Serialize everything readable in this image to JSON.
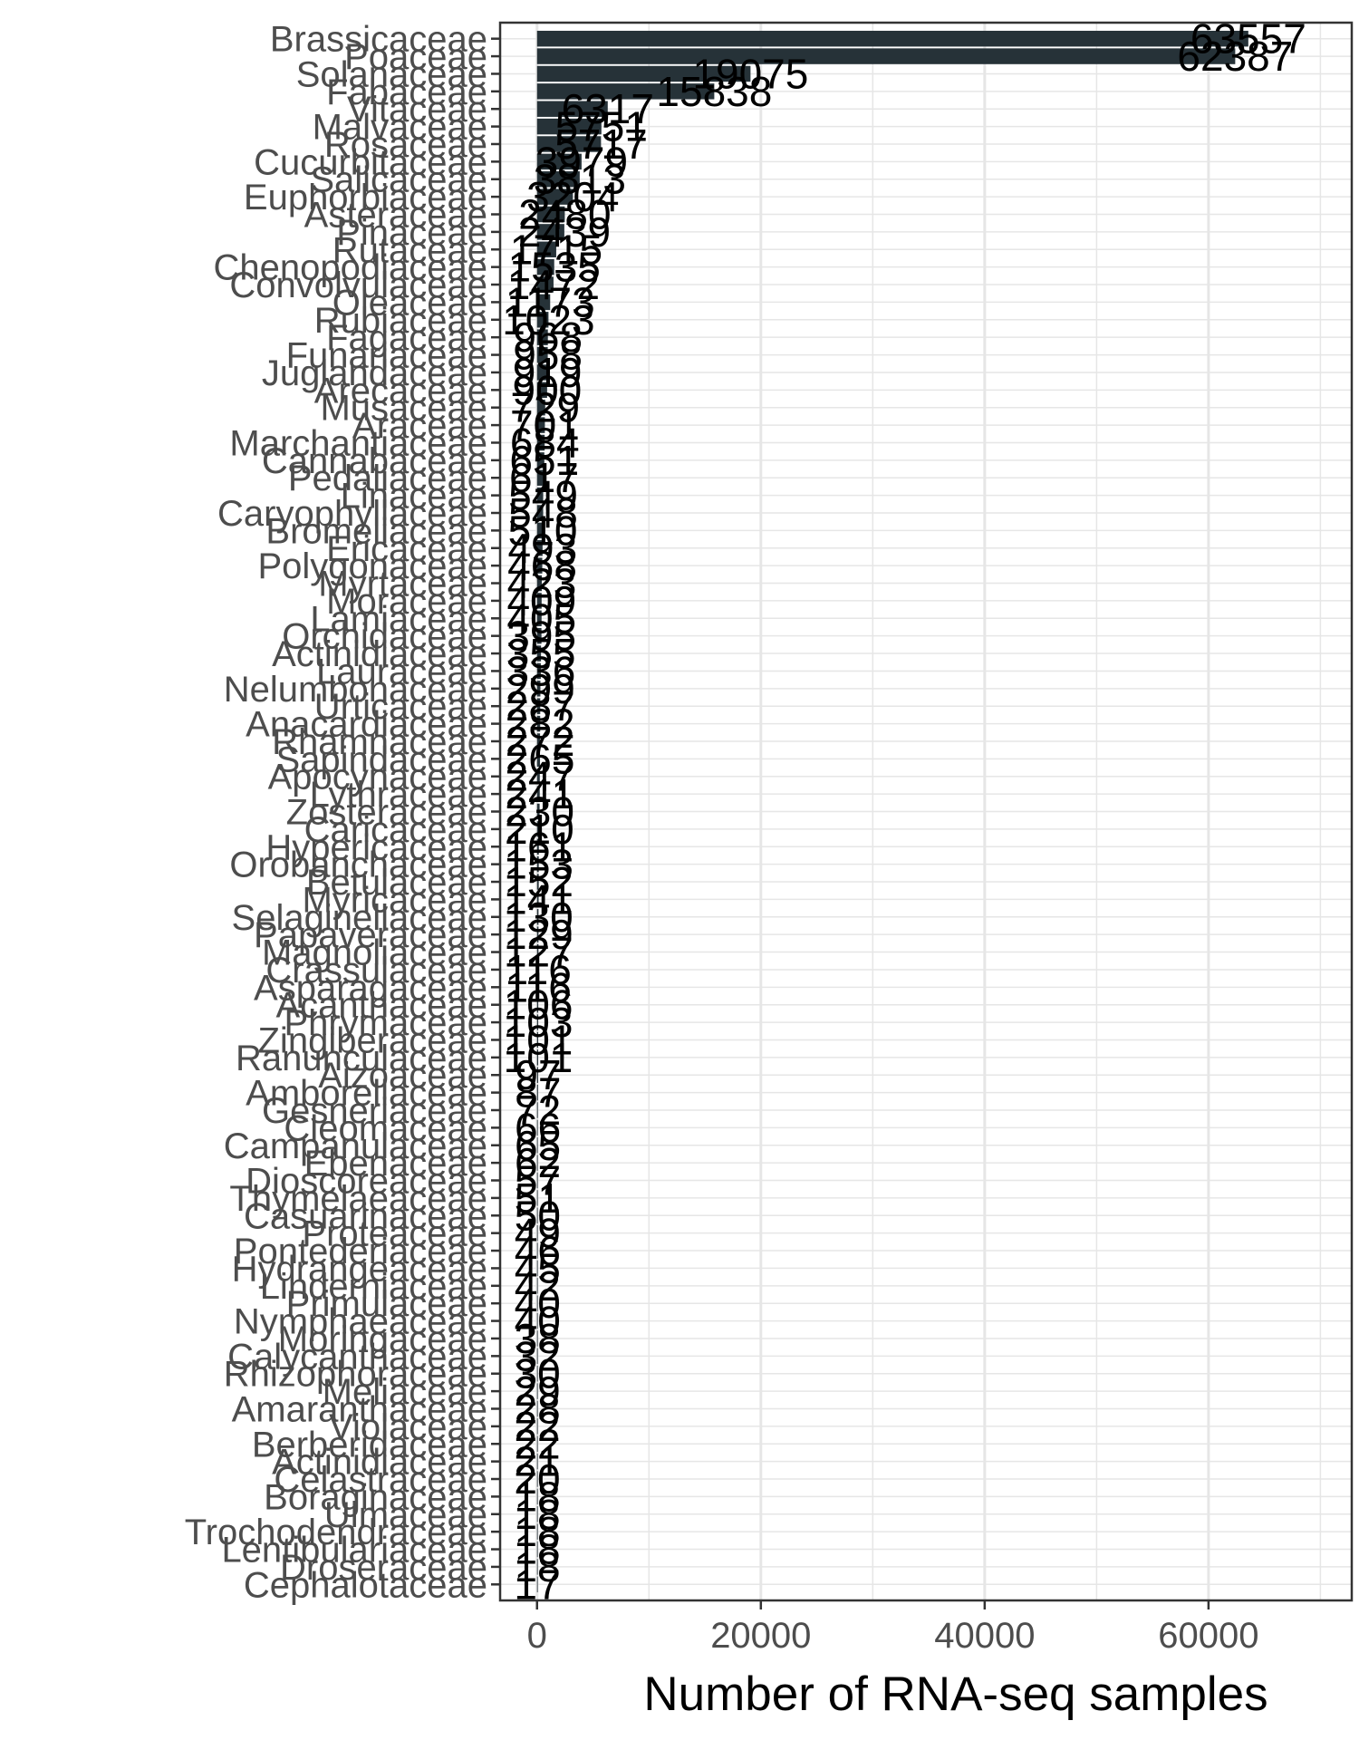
{
  "chart_data": {
    "type": "bar",
    "orientation": "horizontal",
    "title": "",
    "xlabel": "Number of RNA-seq samples",
    "ylabel": "",
    "xlim": [
      -3300,
      72800
    ],
    "xticks": [
      0,
      20000,
      40000,
      60000
    ],
    "grid": true,
    "bar_color": "#263238",
    "categories": [
      "Brassicaceae",
      "Poaceae",
      "Solanaceae",
      "Fabaceae",
      "Vitaceae",
      "Malvaceae",
      "Rosaceae",
      "Cucurbitaceae",
      "Salicaceae",
      "Euphorbiaceae",
      "Asteraceae",
      "Pinaceae",
      "Rutaceae",
      "Chenopodiaceae",
      "Convolvulaceae",
      "Oleaceae",
      "Rubiaceae",
      "Fagaceae",
      "Funariaceae",
      "Juglandaceae",
      "Arecaceae",
      "Musaceae",
      "Araceae",
      "Marchantiaceae",
      "Cannabaceae",
      "Pedaliaceae",
      "Linaceae",
      "Caryophyllaceae",
      "Bromeliaceae",
      "Ericaceae",
      "Polygonaceae",
      "Myrtaceae",
      "Moraceae",
      "Lamiaceae",
      "Orchidaceae",
      "Actinidiaceae",
      "Lauraceae",
      "Nelumbonaceae",
      "Urticaceae",
      "Anacardiaceae",
      "Rhamnaceae",
      "Sapindaceae",
      "Apocynaceae",
      "Lythraceae",
      "Zosteraceae",
      "Caricaceae",
      "Hypericaceae",
      "Orobanchaceae",
      "Betulaceae",
      "Myricaceae",
      "Selaginellaceae",
      "Papaveraceae",
      "Magnoliaceae",
      "Crassulaceae",
      "Asparagaceae",
      "Acanthaceae",
      "Phrymaceae",
      "Zingiberaceae",
      "Ranunculaceae",
      "Aizoaceae",
      "Amborellaceae",
      "Gesneriaceae",
      "Cleomaceae",
      "Campanulaceae",
      "Ebenaceae",
      "Dioscoreaceae",
      "Thymelaeaceae",
      "Casuarinaceae",
      "Proteaceae",
      "Pontederiaceae",
      "Hydrangeaceae",
      "Linderniaceae",
      "Primulaceae",
      "Nymphaeaceae",
      "Moringaceae",
      "Calycanthaceae",
      "Rhizophoraceae",
      "Meliaceae",
      "Amaranthaceae",
      "Violaceae",
      "Berberidaceae",
      "Actinidiaceae",
      "Celastraceae",
      "Boraginaceae",
      "Ulmaceae",
      "Trochodendraceae",
      "Lentibulariaceae",
      "Droseraceae",
      "Cephalotaceae"
    ],
    "values": [
      63557,
      62387,
      19075,
      15838,
      6317,
      5751,
      5717,
      3979,
      3813,
      3204,
      2480,
      2439,
      1715,
      1535,
      1472,
      1173,
      1023,
      968,
      958,
      919,
      900,
      729,
      701,
      684,
      651,
      617,
      549,
      548,
      510,
      493,
      468,
      423,
      409,
      405,
      395,
      355,
      336,
      299,
      287,
      282,
      272,
      265,
      247,
      241,
      230,
      210,
      161,
      153,
      152,
      141,
      130,
      129,
      127,
      116,
      116,
      106,
      103,
      101,
      101,
      97,
      87,
      72,
      66,
      65,
      62,
      57,
      51,
      50,
      49,
      46,
      45,
      42,
      40,
      40,
      38,
      32,
      30,
      29,
      28,
      22,
      22,
      21,
      20,
      18,
      18,
      18,
      18,
      18,
      17
    ],
    "labels": [
      "63557",
      "62387",
      "19075",
      "15838",
      "6317",
      "5751",
      "5717",
      "3979",
      "3813",
      "3204",
      "2480",
      "2439",
      "1715",
      "1535",
      "1472",
      "1173",
      "1023",
      "968",
      "958",
      "919",
      "900",
      "729",
      "701",
      "684",
      "651",
      "617",
      "549",
      "548",
      "510",
      "493",
      "468",
      "423",
      "409",
      "405",
      "395",
      "355",
      "336",
      "299",
      "287",
      "282",
      "272",
      "265",
      "247",
      "241",
      "230",
      "210",
      "161",
      "153",
      "152",
      "141",
      "130",
      "129",
      "127",
      "116",
      "116",
      "106",
      "103",
      "101",
      "101",
      "97",
      "87",
      "72",
      "66",
      "65",
      "62",
      "57",
      "51",
      "50",
      "49",
      "46",
      "45",
      "42",
      "40",
      "40",
      "38",
      "32",
      "30",
      "29",
      "28",
      "22",
      "22",
      "21",
      "20",
      "18",
      "18",
      "18",
      "18",
      "18",
      "17"
    ]
  }
}
